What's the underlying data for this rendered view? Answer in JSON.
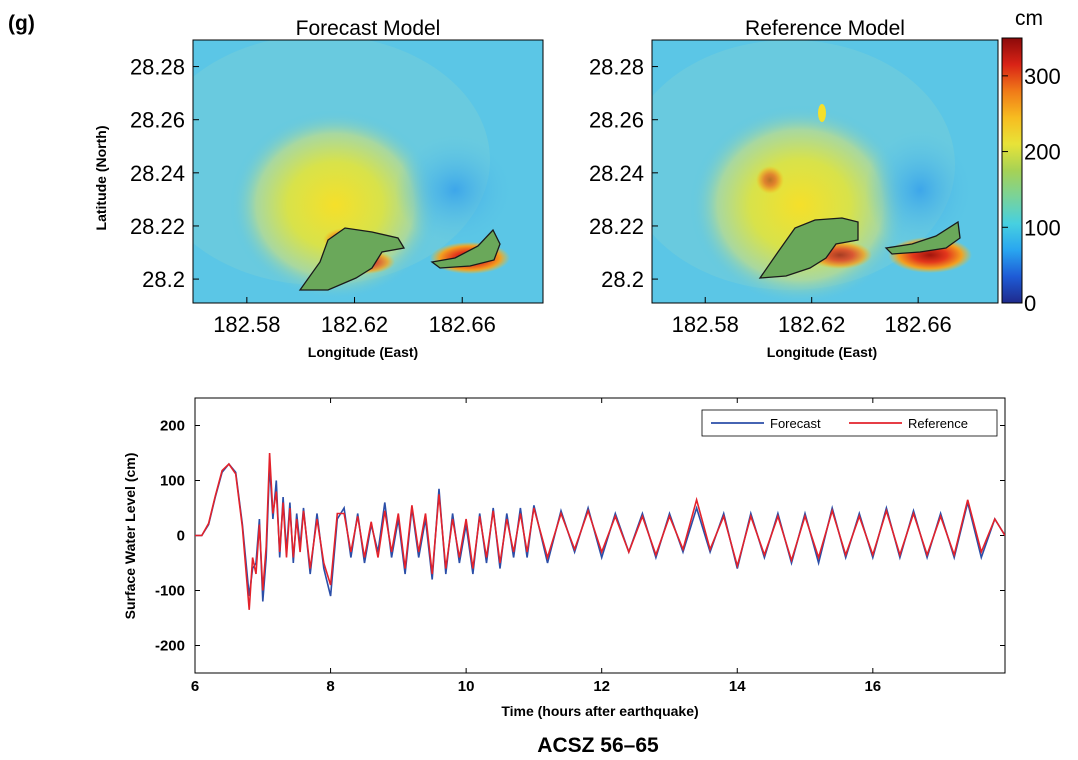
{
  "figure": {
    "panel_label": "(g)",
    "case_label": "ACSZ 56–65"
  },
  "colors": {
    "forecast": "#2b4ea8",
    "reference": "#e3222b",
    "ocean": "#5bc6e6",
    "land_outline": "#1a1a1a"
  },
  "colorbar": {
    "unit": "cm",
    "range": [
      0,
      350
    ],
    "ticks": [
      "0",
      "100",
      "200",
      "300"
    ],
    "colormap": [
      "#1f2a8c",
      "#1e5bd6",
      "#29a6f0",
      "#47d0e0",
      "#79d39a",
      "#a6d255",
      "#e8e338",
      "#f7bc20",
      "#f07a18",
      "#d92316",
      "#8c0a0a"
    ]
  },
  "chart_data": [
    {
      "type": "heatmap",
      "title": "Forecast Model",
      "xlabel": "Longitude (East)",
      "ylabel": "Latitude (North)",
      "x_ticks": [
        "182.58",
        "182.62",
        "182.66"
      ],
      "y_ticks": [
        "28.28",
        "28.26",
        "28.24",
        "28.22",
        "28.2"
      ],
      "xlim": [
        182.56,
        182.69
      ],
      "ylim": [
        28.191,
        28.29
      ],
      "value": "maximum wave amplitude (cm)"
    },
    {
      "type": "heatmap",
      "title": "Reference Model",
      "xlabel": "Longitude (East)",
      "ylabel": "",
      "x_ticks": [
        "182.58",
        "182.62",
        "182.66"
      ],
      "y_ticks": [
        "28.28",
        "28.26",
        "28.24",
        "28.22",
        "28.2"
      ],
      "xlim": [
        182.56,
        182.69
      ],
      "ylim": [
        28.191,
        28.29
      ],
      "value": "maximum wave amplitude (cm)"
    },
    {
      "type": "line",
      "title": "",
      "xlabel": "Time (hours after earthquake)",
      "ylabel": "Surface Water Level (cm)",
      "xlim": [
        6,
        17.95
      ],
      "ylim": [
        -250,
        250
      ],
      "x_ticks": [
        "6",
        "8",
        "10",
        "12",
        "14",
        "16"
      ],
      "y_ticks": [
        "200",
        "100",
        "0",
        "-100",
        "-200"
      ],
      "legend_position": "top-right",
      "series": [
        {
          "name": "Forecast",
          "color": "#2b4ea8",
          "x": [
            6.0,
            6.1,
            6.2,
            6.3,
            6.4,
            6.5,
            6.6,
            6.7,
            6.8,
            6.85,
            6.9,
            6.95,
            7.0,
            7.05,
            7.1,
            7.15,
            7.2,
            7.25,
            7.3,
            7.35,
            7.4,
            7.45,
            7.5,
            7.55,
            7.6,
            7.7,
            7.8,
            7.9,
            8.0,
            8.1,
            8.2,
            8.3,
            8.4,
            8.5,
            8.6,
            8.7,
            8.8,
            8.9,
            9.0,
            9.1,
            9.2,
            9.3,
            9.4,
            9.5,
            9.6,
            9.7,
            9.8,
            9.9,
            10.0,
            10.1,
            10.2,
            10.3,
            10.4,
            10.5,
            10.6,
            10.7,
            10.8,
            10.9,
            11.0,
            11.2,
            11.4,
            11.6,
            11.8,
            12.0,
            12.2,
            12.4,
            12.6,
            12.8,
            13.0,
            13.2,
            13.4,
            13.6,
            13.8,
            14.0,
            14.2,
            14.4,
            14.6,
            14.8,
            15.0,
            15.2,
            15.4,
            15.6,
            15.8,
            16.0,
            16.2,
            16.4,
            16.6,
            16.8,
            17.0,
            17.2,
            17.4,
            17.6,
            17.8,
            17.95
          ],
          "y": [
            0,
            0,
            20,
            70,
            115,
            130,
            115,
            20,
            -110,
            -60,
            -50,
            30,
            -120,
            -40,
            130,
            30,
            100,
            -40,
            70,
            -30,
            60,
            -50,
            40,
            -20,
            50,
            -70,
            40,
            -60,
            -110,
            30,
            50,
            -40,
            40,
            -50,
            20,
            -30,
            60,
            -40,
            30,
            -70,
            50,
            -40,
            30,
            -80,
            85,
            -70,
            40,
            -50,
            20,
            -70,
            40,
            -50,
            50,
            -60,
            40,
            -40,
            50,
            -40,
            55,
            -50,
            45,
            -30,
            50,
            -40,
            40,
            -30,
            40,
            -40,
            40,
            -30,
            50,
            -30,
            40,
            -60,
            40,
            -40,
            40,
            -50,
            40,
            -50,
            50,
            -40,
            40,
            -40,
            50,
            -40,
            45,
            -40,
            40,
            -40,
            60,
            -40,
            30,
            0
          ]
        },
        {
          "name": "Reference",
          "color": "#e3222b",
          "x": [
            6.0,
            6.1,
            6.2,
            6.3,
            6.4,
            6.5,
            6.6,
            6.7,
            6.8,
            6.85,
            6.9,
            6.95,
            7.0,
            7.05,
            7.1,
            7.15,
            7.2,
            7.25,
            7.3,
            7.35,
            7.4,
            7.45,
            7.5,
            7.55,
            7.6,
            7.7,
            7.8,
            7.9,
            8.0,
            8.1,
            8.2,
            8.3,
            8.4,
            8.5,
            8.6,
            8.7,
            8.8,
            8.9,
            9.0,
            9.1,
            9.2,
            9.3,
            9.4,
            9.5,
            9.6,
            9.7,
            9.8,
            9.9,
            10.0,
            10.1,
            10.2,
            10.3,
            10.4,
            10.5,
            10.6,
            10.7,
            10.8,
            10.9,
            11.0,
            11.2,
            11.4,
            11.6,
            11.8,
            12.0,
            12.2,
            12.4,
            12.6,
            12.8,
            13.0,
            13.2,
            13.4,
            13.6,
            13.8,
            14.0,
            14.2,
            14.4,
            14.6,
            14.8,
            15.0,
            15.2,
            15.4,
            15.6,
            15.8,
            16.0,
            16.2,
            16.4,
            16.6,
            16.8,
            17.0,
            17.2,
            17.4,
            17.6,
            17.8,
            17.95
          ],
          "y": [
            0,
            0,
            22,
            72,
            118,
            130,
            112,
            15,
            -135,
            -40,
            -70,
            20,
            -100,
            -20,
            150,
            40,
            80,
            -30,
            60,
            -40,
            50,
            -40,
            30,
            -30,
            45,
            -60,
            30,
            -50,
            -90,
            40,
            40,
            -30,
            35,
            -40,
            25,
            -40,
            45,
            -30,
            40,
            -60,
            55,
            -30,
            40,
            -70,
            75,
            -60,
            30,
            -40,
            30,
            -60,
            35,
            -40,
            45,
            -50,
            30,
            -30,
            40,
            -30,
            50,
            -40,
            40,
            -25,
            45,
            -30,
            35,
            -30,
            35,
            -35,
            35,
            -25,
            65,
            -25,
            35,
            -55,
            35,
            -35,
            35,
            -45,
            35,
            -40,
            45,
            -35,
            35,
            -35,
            45,
            -35,
            40,
            -35,
            35,
            -35,
            65,
            -30,
            30,
            0
          ]
        }
      ]
    }
  ]
}
